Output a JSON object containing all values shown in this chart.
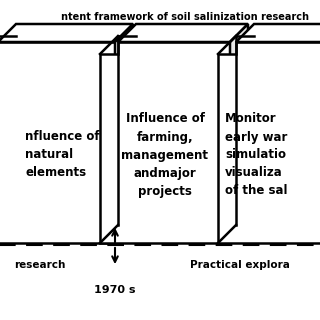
{
  "title": "ntent framework of soil salinization research",
  "background_color": "#ffffff",
  "box1_text": "nfluence of\nnatural\nelements",
  "box2_text": "Influence of\nfarming,\nmanagement\nandmajor\nprojects",
  "box3_text": "Monitor\nearly war\nsimulatio\nvisualiza\nof the sal",
  "bottom_left_text": "research",
  "bottom_right_text": "Practical explora",
  "bottom_center_text": "1970 s",
  "lw": 1.8,
  "fig_width": 3.2,
  "fig_height": 3.2,
  "dpi": 100
}
